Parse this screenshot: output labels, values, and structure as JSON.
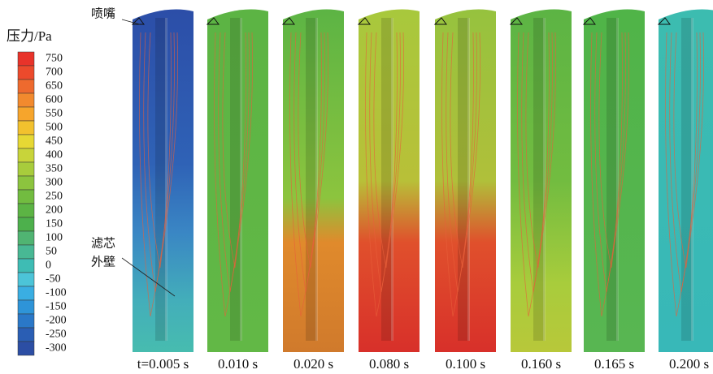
{
  "legend": {
    "title": "压力/Pa",
    "ticks": [
      750,
      700,
      650,
      600,
      550,
      500,
      450,
      400,
      350,
      300,
      250,
      200,
      150,
      100,
      50,
      0,
      -50,
      -100,
      -150,
      -200,
      -250,
      -300
    ],
    "colors": [
      "#e8332a",
      "#ec4a2c",
      "#ee6a2e",
      "#f28a2e",
      "#f6a52c",
      "#f2c12e",
      "#e6d834",
      "#c8d43a",
      "#a8cc3c",
      "#8cc43e",
      "#72bc40",
      "#5cb444",
      "#4db04c",
      "#50b472",
      "#48b894",
      "#3ebcb4",
      "#4cc4d8",
      "#3aaee2",
      "#2e94d8",
      "#2a78c8",
      "#2a5eb4",
      "#2c4ea4"
    ]
  },
  "annotations": {
    "nozzle": "喷嘴",
    "wall_line1": "滤芯",
    "wall_line2": "外壁"
  },
  "panels": [
    {
      "label": "t=0.005 s"
    },
    {
      "label": "0.010 s"
    },
    {
      "label": "0.020 s"
    },
    {
      "label": "0.080 s"
    },
    {
      "label": "0.100 s"
    },
    {
      "label": "0.160 s"
    },
    {
      "label": "0.165 s"
    },
    {
      "label": "0.200 s"
    }
  ]
}
